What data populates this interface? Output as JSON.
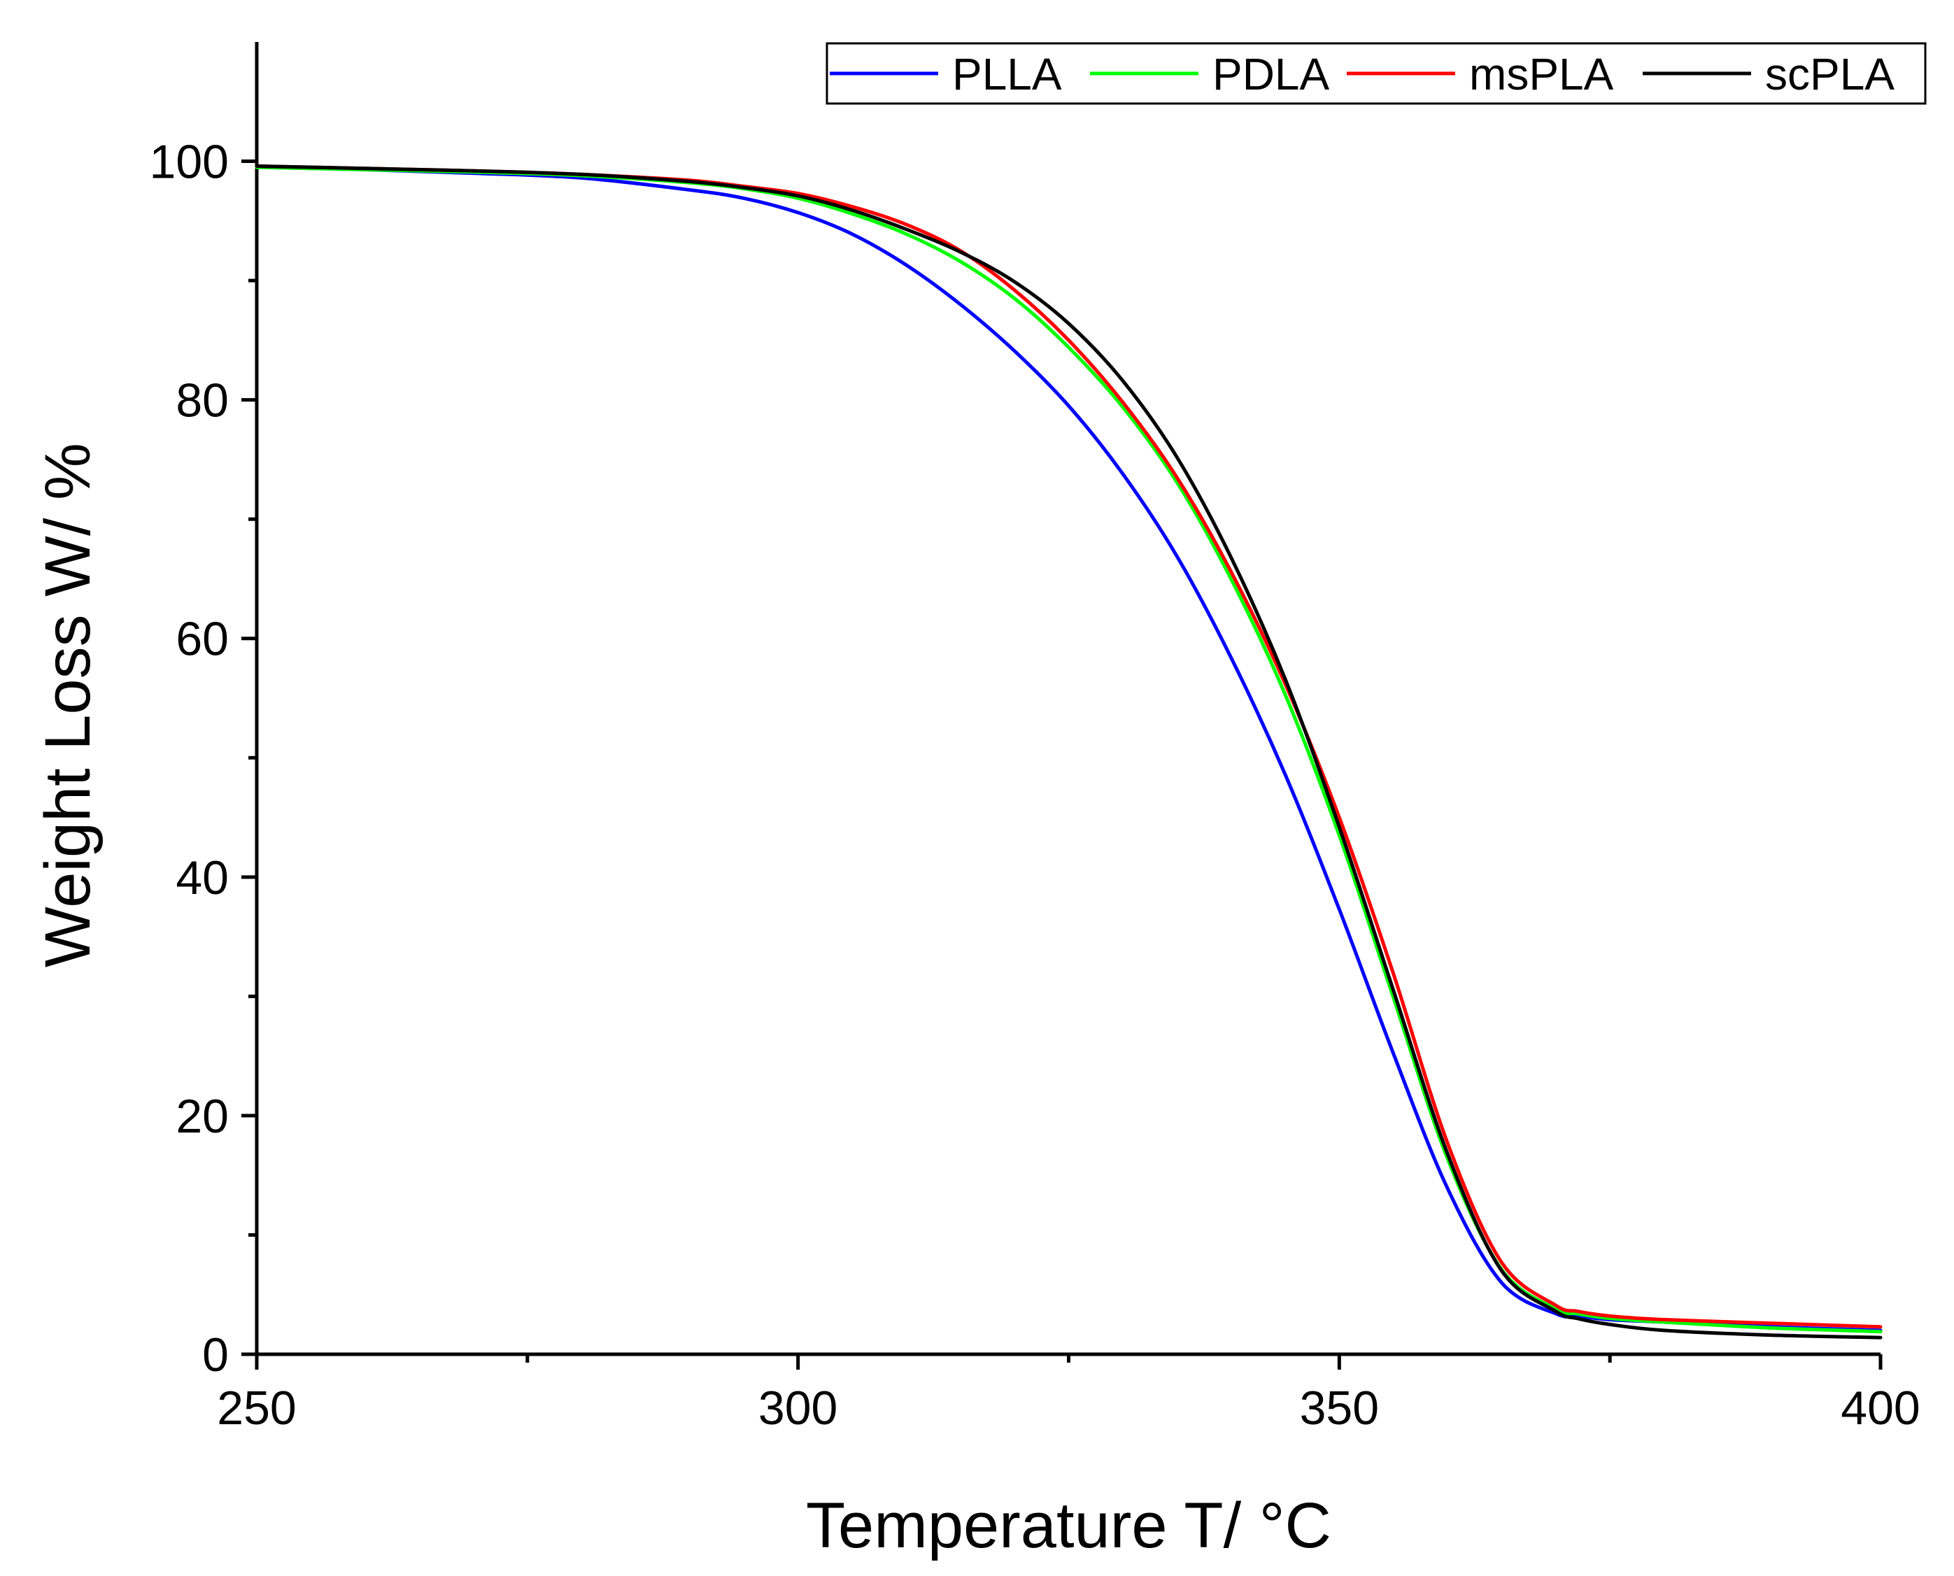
{
  "chart_data": {
    "type": "line",
    "title": "",
    "xlabel": "Temperature T/ °C",
    "ylabel": "Weight Loss W/ %",
    "xlim": [
      250,
      400
    ],
    "ylim": [
      0,
      110
    ],
    "xticks": [
      250,
      300,
      350,
      400
    ],
    "xtick_labels": [
      "250",
      "300",
      "350",
      "400"
    ],
    "yticks": [
      0,
      20,
      40,
      60,
      80,
      100
    ],
    "ytick_labels": [
      "0",
      "20",
      "40",
      "60",
      "80",
      "100"
    ],
    "grid": false,
    "legend_position": "top-right",
    "series": [
      {
        "name": "PLLA",
        "color": "#0000ff",
        "x": [
          250,
          260,
          270,
          280,
          290,
          295,
          300,
          305,
          310,
          315,
          320,
          325,
          330,
          335,
          340,
          345,
          350,
          355,
          360,
          365,
          370,
          372,
          375,
          380,
          390,
          400
        ],
        "y": [
          99.5,
          99.3,
          99.0,
          98.6,
          97.6,
          96.9,
          95.7,
          93.9,
          91.3,
          88.0,
          84.1,
          79.5,
          73.8,
          66.9,
          58.4,
          48.6,
          37.3,
          25.2,
          13.9,
          6.0,
          3.4,
          3.2,
          2.9,
          2.7,
          2.3,
          2.0
        ]
      },
      {
        "name": "PDLA",
        "color": "#00ff00",
        "x": [
          250,
          260,
          270,
          280,
          290,
          295,
          300,
          305,
          310,
          315,
          320,
          325,
          330,
          335,
          340,
          345,
          350,
          355,
          360,
          365,
          370,
          372,
          375,
          380,
          390,
          400
        ],
        "y": [
          99.5,
          99.3,
          99.1,
          98.8,
          98.2,
          97.7,
          96.9,
          95.6,
          93.9,
          91.6,
          88.5,
          84.4,
          79.4,
          73.1,
          65.0,
          55.3,
          43.5,
          29.9,
          16.4,
          7.1,
          3.8,
          3.4,
          3.0,
          2.7,
          2.2,
          1.9
        ]
      },
      {
        "name": "msPLA",
        "color": "#ff0000",
        "x": [
          250,
          260,
          270,
          280,
          290,
          295,
          300,
          305,
          310,
          315,
          320,
          325,
          330,
          335,
          340,
          345,
          350,
          355,
          360,
          365,
          370,
          372,
          375,
          380,
          390,
          400
        ],
        "y": [
          99.6,
          99.4,
          99.2,
          98.9,
          98.4,
          97.9,
          97.3,
          96.2,
          94.7,
          92.5,
          89.2,
          85.0,
          79.8,
          73.5,
          65.6,
          56.2,
          45.0,
          31.9,
          17.7,
          7.7,
          4.1,
          3.6,
          3.2,
          2.9,
          2.6,
          2.3
        ]
      },
      {
        "name": "scPLA",
        "color": "#000000",
        "x": [
          250,
          260,
          270,
          280,
          290,
          295,
          300,
          305,
          310,
          315,
          320,
          325,
          330,
          335,
          340,
          345,
          350,
          355,
          360,
          365,
          370,
          372,
          375,
          380,
          390,
          400
        ],
        "y": [
          99.6,
          99.4,
          99.2,
          98.9,
          98.3,
          97.8,
          97.1,
          95.9,
          94.3,
          92.4,
          89.9,
          86.4,
          81.6,
          75.2,
          66.8,
          56.6,
          44.2,
          30.5,
          16.8,
          7.0,
          3.6,
          3.0,
          2.5,
          2.0,
          1.6,
          1.4
        ]
      }
    ]
  }
}
